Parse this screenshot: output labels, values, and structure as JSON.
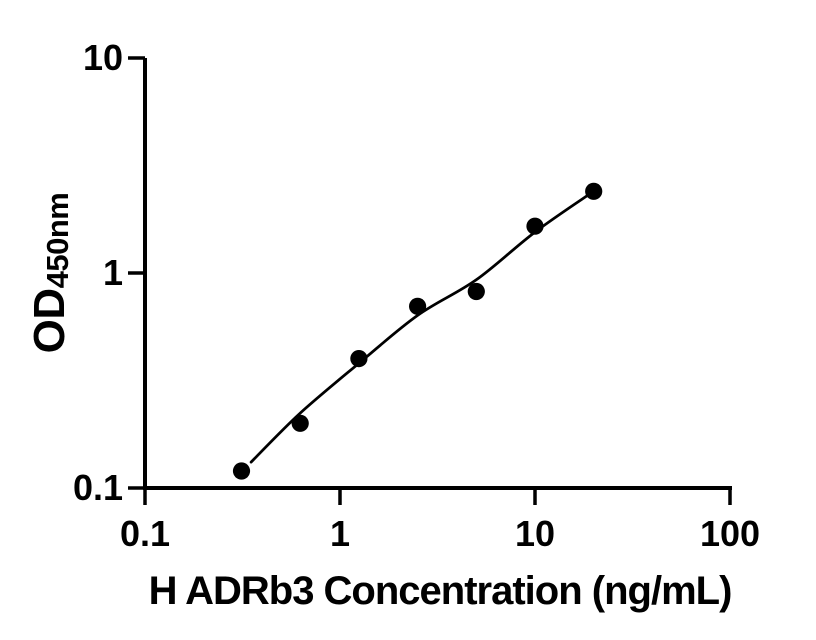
{
  "figure": {
    "background_color": "#ffffff",
    "ink_color": "#000000"
  },
  "chart_data": {
    "type": "scatter",
    "title": "",
    "xlabel": "H ADRb3 Concentration (ng/mL)",
    "ylabel": "OD",
    "ylabel_sub": "450nm",
    "xscale": "log",
    "yscale": "log",
    "xlim": [
      0.1,
      100
    ],
    "ylim": [
      0.1,
      10
    ],
    "grid": false,
    "legend": "none",
    "xticks": [
      {
        "v": 0.1,
        "label": "0.1"
      },
      {
        "v": 1,
        "label": "1"
      },
      {
        "v": 10,
        "label": "10"
      },
      {
        "v": 100,
        "label": "100"
      }
    ],
    "yticks": [
      {
        "v": 10,
        "label": "10"
      },
      {
        "v": 1,
        "label": "1"
      },
      {
        "v": 0.1,
        "label": "0.1"
      }
    ],
    "series": [
      {
        "name": "standard-points",
        "type": "scatter",
        "marker": "filled-circle",
        "color": "#000000",
        "x": [
          0.3125,
          0.625,
          1.25,
          2.5,
          5,
          10,
          20
        ],
        "y": [
          0.12,
          0.2,
          0.4,
          0.7,
          0.82,
          1.65,
          2.4
        ]
      },
      {
        "name": "fit-curve",
        "type": "line",
        "color": "#000000",
        "x": [
          0.35,
          0.625,
          1.25,
          2.5,
          5,
          10,
          20
        ],
        "y": [
          0.132,
          0.223,
          0.38,
          0.635,
          0.93,
          1.55,
          2.4
        ]
      }
    ]
  }
}
